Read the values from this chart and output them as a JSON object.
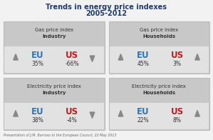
{
  "title_line1": "Trends in energy price indexes",
  "title_line2": "2005-2012",
  "title_color": "#1F3B6E",
  "background_color": "#F2F2F2",
  "box_outer_color": "#C8C8C8",
  "box_inner_color": "#E2E2E2",
  "eu_color": "#2E75B6",
  "us_color": "#B22222",
  "label_text_color": "#333333",
  "footer": "Presentation of J.M. Barroso to the European Council, 22 May 2013",
  "panels": [
    {
      "title_line1": "Gas price index",
      "title_line2": "Industry",
      "eu_val": "35%",
      "us_val": "-66%",
      "eu_up": true,
      "us_up": false,
      "col": 0,
      "row": 0
    },
    {
      "title_line1": "Gas price index",
      "title_line2": "Households",
      "eu_val": "45%",
      "us_val": "3%",
      "eu_up": true,
      "us_up": true,
      "col": 1,
      "row": 0
    },
    {
      "title_line1": "Electricity price index",
      "title_line2": "Industry",
      "eu_val": "38%",
      "us_val": "-4%",
      "eu_up": true,
      "us_up": false,
      "col": 0,
      "row": 1
    },
    {
      "title_line1": "Electricity price index",
      "title_line2": "Households",
      "eu_val": "22%",
      "us_val": "8%",
      "eu_up": true,
      "us_up": true,
      "col": 1,
      "row": 1
    }
  ]
}
